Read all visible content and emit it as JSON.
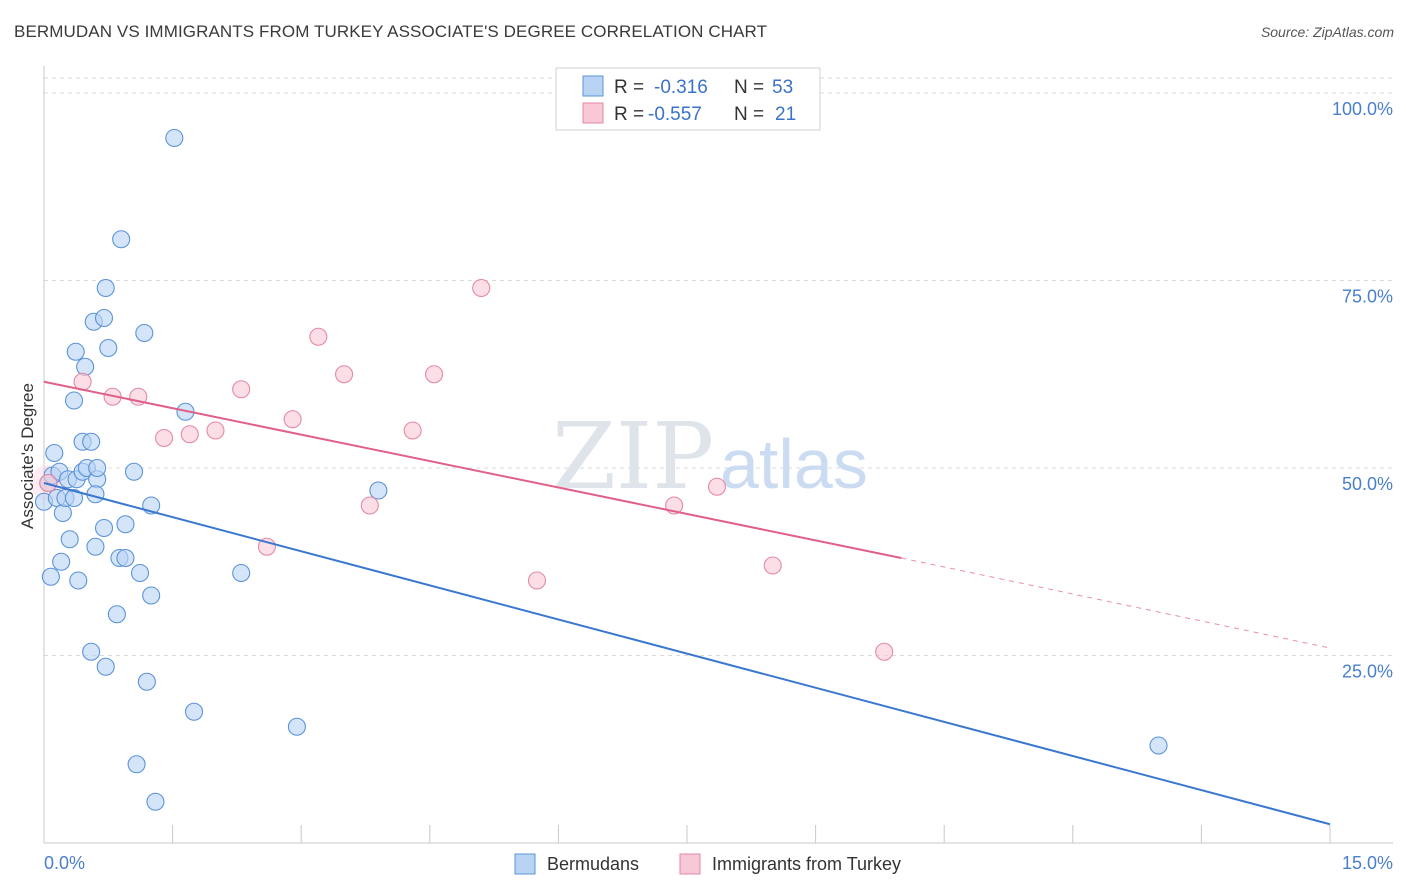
{
  "header": {
    "title": "BERMUDAN VS IMMIGRANTS FROM TURKEY ASSOCIATE'S DEGREE CORRELATION CHART",
    "source": "Source: ZipAtlas.com"
  },
  "watermark": {
    "zip": "ZIP",
    "atlas": "atlas"
  },
  "colors": {
    "blue_fill": "#b9d3f5",
    "blue_stroke": "#5b93d8",
    "blue_line": "#3a78d0",
    "pink_fill": "#f8c8d6",
    "pink_stroke": "#e589a6",
    "pink_line": "#e0608a",
    "grid": "#d9d9d9",
    "axis_label": "#4a7fcb"
  },
  "stats_legend": {
    "rows": [
      {
        "r_label": "R =",
        "r_value": "-0.316",
        "n_label": "N =",
        "n_value": "53"
      },
      {
        "r_label": "R =",
        "r_value": "-0.557",
        "n_label": "N =",
        "n_value": "21"
      }
    ]
  },
  "chart_data": {
    "type": "scatter",
    "title": "BERMUDAN VS IMMIGRANTS FROM TURKEY ASSOCIATE'S DEGREE CORRELATION CHART",
    "xlabel": "",
    "ylabel": "Associate's Degree",
    "xlim": [
      0,
      15
    ],
    "ylim": [
      0,
      102
    ],
    "x_tick_labels": [
      "0.0%",
      "15.0%"
    ],
    "y_ticks": [
      25,
      50,
      75,
      100
    ],
    "y_tick_labels": [
      "25.0%",
      "50.0%",
      "75.0%",
      "100.0%"
    ],
    "grid": true,
    "legend_position": "bottom-center",
    "series": [
      {
        "name": "Bermudans",
        "color": "blue",
        "points": [
          [
            0.0,
            45.5
          ],
          [
            0.05,
            48
          ],
          [
            0.08,
            35.5
          ],
          [
            0.1,
            49
          ],
          [
            0.12,
            52
          ],
          [
            0.15,
            46
          ],
          [
            0.18,
            49.5
          ],
          [
            0.2,
            37.5
          ],
          [
            0.22,
            44
          ],
          [
            0.25,
            46
          ],
          [
            0.28,
            48.5
          ],
          [
            0.3,
            40.5
          ],
          [
            0.35,
            46
          ],
          [
            0.35,
            59
          ],
          [
            0.37,
            65.5
          ],
          [
            0.38,
            48.5
          ],
          [
            0.4,
            35
          ],
          [
            0.45,
            53.5
          ],
          [
            0.45,
            49.5
          ],
          [
            0.48,
            63.5
          ],
          [
            0.5,
            50
          ],
          [
            0.55,
            25.5
          ],
          [
            0.55,
            53.5
          ],
          [
            0.58,
            69.5
          ],
          [
            0.6,
            39.5
          ],
          [
            0.62,
            48.5
          ],
          [
            0.62,
            50
          ],
          [
            0.6,
            46.5
          ],
          [
            0.7,
            70
          ],
          [
            0.7,
            42
          ],
          [
            0.72,
            74
          ],
          [
            0.72,
            23.5
          ],
          [
            0.75,
            66
          ],
          [
            0.85,
            30.5
          ],
          [
            0.88,
            38
          ],
          [
            0.9,
            80.5
          ],
          [
            0.95,
            42.5
          ],
          [
            0.95,
            38
          ],
          [
            1.05,
            49.5
          ],
          [
            1.08,
            10.5
          ],
          [
            1.12,
            36
          ],
          [
            1.17,
            68
          ],
          [
            1.2,
            21.5
          ],
          [
            1.25,
            33
          ],
          [
            1.25,
            45
          ],
          [
            1.3,
            5.5
          ],
          [
            1.52,
            94
          ],
          [
            1.65,
            57.5
          ],
          [
            1.75,
            17.5
          ],
          [
            2.3,
            36
          ],
          [
            2.95,
            15.5
          ],
          [
            3.9,
            47
          ],
          [
            13.0,
            13
          ]
        ]
      },
      {
        "name": "Immigrants from Turkey",
        "color": "pink",
        "points": [
          [
            0.05,
            48
          ],
          [
            0.45,
            61.5
          ],
          [
            0.8,
            59.5
          ],
          [
            1.1,
            59.5
          ],
          [
            1.4,
            54
          ],
          [
            1.7,
            54.5
          ],
          [
            2.0,
            55
          ],
          [
            2.3,
            60.5
          ],
          [
            2.6,
            39.5
          ],
          [
            2.9,
            56.5
          ],
          [
            3.2,
            67.5
          ],
          [
            3.5,
            62.5
          ],
          [
            3.8,
            45
          ],
          [
            4.3,
            55
          ],
          [
            4.55,
            62.5
          ],
          [
            5.1,
            74
          ],
          [
            5.75,
            35
          ],
          [
            7.35,
            45
          ],
          [
            7.85,
            47.5
          ],
          [
            8.5,
            37
          ],
          [
            9.8,
            25.5
          ]
        ]
      }
    ],
    "trendlines": [
      {
        "series": "Bermudans",
        "x0": 0.0,
        "y0": 48.0,
        "x1": 15.0,
        "y1": 2.5
      },
      {
        "series": "Immigrants from Turkey",
        "x0": 0.0,
        "y0": 61.5,
        "x1": 10.0,
        "y1": 38.0,
        "dashed_to_x": 15.0,
        "dashed_to_y": 26.0
      }
    ]
  }
}
